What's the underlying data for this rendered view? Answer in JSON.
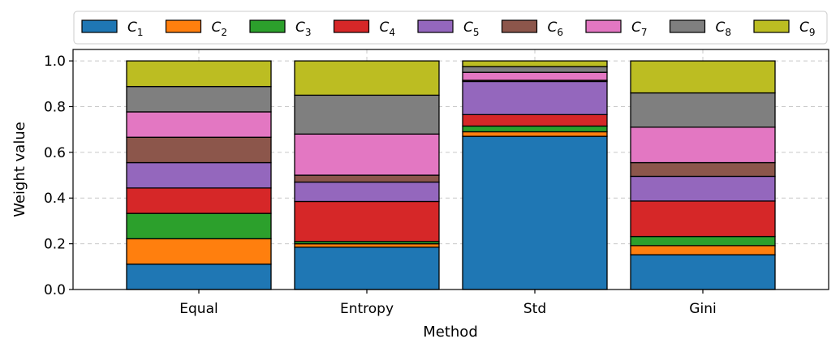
{
  "chart_data": {
    "type": "bar",
    "stacked": true,
    "categories": [
      "Equal",
      "Entropy",
      "Std",
      "Gini"
    ],
    "xlabel": "Method",
    "ylabel": "Weight value",
    "ylim": [
      0,
      1.05
    ],
    "yticks": [
      0.0,
      0.2,
      0.4,
      0.6,
      0.8,
      1.0
    ],
    "ytick_labels": [
      "0.0",
      "0.2",
      "0.4",
      "0.6",
      "0.8",
      "1.0"
    ],
    "grid": true,
    "legend_position": "top",
    "series": [
      {
        "name": "C1",
        "base": "C",
        "sub": "1",
        "color": "#1f77b4",
        "values": [
          0.111,
          0.185,
          0.67,
          0.152
        ]
      },
      {
        "name": "C2",
        "base": "C",
        "sub": "2",
        "color": "#ff7f0e",
        "values": [
          0.111,
          0.015,
          0.02,
          0.04
        ]
      },
      {
        "name": "C3",
        "base": "C",
        "sub": "3",
        "color": "#2ca02c",
        "values": [
          0.111,
          0.01,
          0.025,
          0.04
        ]
      },
      {
        "name": "C4",
        "base": "C",
        "sub": "4",
        "color": "#d62728",
        "values": [
          0.111,
          0.175,
          0.05,
          0.155
        ]
      },
      {
        "name": "C5",
        "base": "C",
        "sub": "5",
        "color": "#9467bd",
        "values": [
          0.111,
          0.085,
          0.145,
          0.108
        ]
      },
      {
        "name": "C6",
        "base": "C",
        "sub": "6",
        "color": "#8c564b",
        "values": [
          0.111,
          0.03,
          0.005,
          0.06
        ]
      },
      {
        "name": "C7",
        "base": "C",
        "sub": "7",
        "color": "#e377c2",
        "values": [
          0.111,
          0.18,
          0.035,
          0.155
        ]
      },
      {
        "name": "C8",
        "base": "C",
        "sub": "8",
        "color": "#7f7f7f",
        "values": [
          0.111,
          0.17,
          0.025,
          0.15
        ]
      },
      {
        "name": "C9",
        "base": "C",
        "sub": "9",
        "color": "#bcbd22",
        "values": [
          0.112,
          0.15,
          0.025,
          0.14
        ]
      }
    ]
  }
}
